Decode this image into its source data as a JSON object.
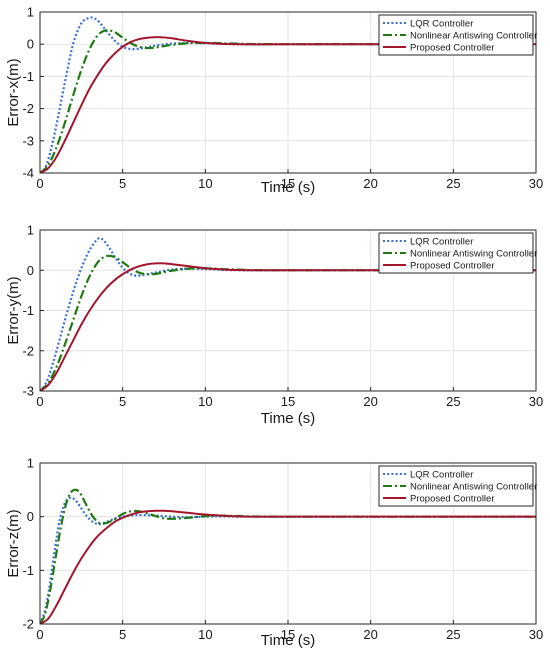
{
  "chart_data": [
    {
      "type": "line",
      "xlabel": "Time (s)",
      "ylabel": "Error-x(m)",
      "xlim": [
        0,
        30
      ],
      "ylim": [
        -4,
        1
      ],
      "xticks": [
        0,
        5,
        10,
        15,
        20,
        25,
        30
      ],
      "yticks": [
        -4,
        -3,
        -2,
        -1,
        0,
        1
      ],
      "grid": true,
      "legend": "top-right",
      "series": [
        {
          "name": "LQR Controller",
          "color": "#3a6fd8",
          "style": "dotted",
          "x": [
            0,
            0.3,
            0.6,
            1.0,
            1.5,
            2.0,
            2.5,
            3.0,
            3.3,
            3.6,
            4.0,
            4.5,
            5.0,
            5.5,
            6.0,
            6.5,
            7.0,
            8.0,
            9.0,
            10.0,
            11.0,
            12.0,
            13.0,
            15.0,
            20.0,
            30.0
          ],
          "y": [
            -4.0,
            -3.85,
            -3.4,
            -2.5,
            -1.2,
            0.0,
            0.65,
            0.82,
            0.8,
            0.68,
            0.42,
            0.12,
            -0.08,
            -0.15,
            -0.14,
            -0.09,
            -0.04,
            0.02,
            0.04,
            0.03,
            0.01,
            0.0,
            -0.005,
            0.0,
            0.0,
            0.0
          ]
        },
        {
          "name": "Nonlinear Antiswing Controller",
          "color": "#1f7a12",
          "style": "dashdot",
          "x": [
            0,
            0.5,
            1.0,
            1.5,
            2.0,
            2.5,
            3.0,
            3.5,
            4.0,
            4.5,
            5.0,
            5.5,
            6.0,
            6.5,
            7.0,
            7.5,
            8.0,
            9.0,
            10.0,
            11.0,
            12.0,
            13.0,
            15.0,
            20.0,
            30.0
          ],
          "y": [
            -4.0,
            -3.75,
            -3.2,
            -2.45,
            -1.6,
            -0.8,
            -0.15,
            0.28,
            0.43,
            0.38,
            0.2,
            0.03,
            -0.08,
            -0.12,
            -0.1,
            -0.06,
            -0.02,
            0.03,
            0.04,
            0.03,
            0.015,
            0.005,
            0.0,
            0.0,
            0.0
          ]
        },
        {
          "name": "Proposed Controller",
          "color": "#a3162c",
          "style": "solid",
          "x": [
            0,
            0.5,
            1.0,
            1.5,
            2.0,
            2.5,
            3.0,
            3.5,
            4.0,
            4.5,
            5.0,
            5.5,
            6.0,
            6.5,
            7.0,
            7.5,
            8.0,
            9.0,
            10.0,
            11.0,
            12.0,
            13.0,
            15.0,
            20.0,
            30.0
          ],
          "y": [
            -4.0,
            -3.85,
            -3.5,
            -3.0,
            -2.45,
            -1.9,
            -1.38,
            -0.95,
            -0.58,
            -0.3,
            -0.08,
            0.07,
            0.16,
            0.2,
            0.22,
            0.21,
            0.18,
            0.1,
            0.04,
            0.01,
            0.0,
            -0.005,
            0.0,
            0.0,
            0.0
          ]
        }
      ]
    },
    {
      "type": "line",
      "xlabel": "Time (s)",
      "ylabel": "Error-y(m)",
      "xlim": [
        0,
        30
      ],
      "ylim": [
        -3,
        1
      ],
      "xticks": [
        0,
        5,
        10,
        15,
        20,
        25,
        30
      ],
      "yticks": [
        -3,
        -2,
        -1,
        0,
        1
      ],
      "grid": true,
      "legend": "top-right",
      "series": [
        {
          "name": "LQR Controller",
          "color": "#3a6fd8",
          "style": "dotted",
          "x": [
            0,
            0.3,
            0.6,
            1.0,
            1.5,
            2.0,
            2.5,
            3.0,
            3.5,
            3.8,
            4.2,
            4.7,
            5.2,
            5.7,
            6.2,
            6.7,
            7.2,
            8.0,
            9.0,
            10.0,
            11.0,
            12.0,
            13.0,
            15.0,
            20.0,
            30.0
          ],
          "y": [
            -3.0,
            -2.85,
            -2.55,
            -2.0,
            -1.25,
            -0.55,
            0.05,
            0.5,
            0.78,
            0.76,
            0.55,
            0.22,
            -0.02,
            -0.13,
            -0.12,
            -0.08,
            -0.04,
            0.02,
            0.04,
            0.03,
            0.01,
            0.0,
            -0.005,
            0.0,
            0.0,
            0.0
          ]
        },
        {
          "name": "Nonlinear Antiswing Controller",
          "color": "#1f7a12",
          "style": "dashdot",
          "x": [
            0,
            0.5,
            1.0,
            1.5,
            2.0,
            2.5,
            3.0,
            3.5,
            4.0,
            4.5,
            5.0,
            5.5,
            6.0,
            6.5,
            7.0,
            7.5,
            8.0,
            9.0,
            10.0,
            11.0,
            12.0,
            13.0,
            15.0,
            20.0,
            30.0
          ],
          "y": [
            -3.0,
            -2.8,
            -2.4,
            -1.85,
            -1.25,
            -0.65,
            -0.15,
            0.2,
            0.35,
            0.33,
            0.2,
            0.05,
            -0.06,
            -0.1,
            -0.09,
            -0.05,
            -0.01,
            0.04,
            0.05,
            0.03,
            0.015,
            0.005,
            0.0,
            0.0,
            0.0
          ]
        },
        {
          "name": "Proposed Controller",
          "color": "#a3162c",
          "style": "solid",
          "x": [
            0,
            0.5,
            1.0,
            1.5,
            2.0,
            2.5,
            3.0,
            3.5,
            4.0,
            4.5,
            5.0,
            5.5,
            6.0,
            6.5,
            7.0,
            7.5,
            8.0,
            9.0,
            10.0,
            11.0,
            12.0,
            13.0,
            15.0,
            20.0,
            30.0
          ],
          "y": [
            -3.0,
            -2.85,
            -2.55,
            -2.15,
            -1.75,
            -1.35,
            -1.0,
            -0.7,
            -0.45,
            -0.25,
            -0.1,
            0.02,
            0.1,
            0.15,
            0.17,
            0.17,
            0.15,
            0.1,
            0.05,
            0.02,
            0.005,
            0.0,
            0.0,
            0.0,
            0.0
          ]
        }
      ]
    },
    {
      "type": "line",
      "xlabel": "Time (s)",
      "ylabel": "Error-z(m)",
      "xlim": [
        0,
        30
      ],
      "ylim": [
        -2,
        1
      ],
      "xticks": [
        0,
        5,
        10,
        15,
        20,
        25,
        30
      ],
      "yticks": [
        -2,
        -1,
        0,
        1
      ],
      "grid": true,
      "legend": "top-right",
      "series": [
        {
          "name": "LQR Controller",
          "color": "#3a6fd8",
          "style": "dotted",
          "x": [
            0,
            0.3,
            0.6,
            0.9,
            1.2,
            1.5,
            1.8,
            2.1,
            2.4,
            2.8,
            3.2,
            3.6,
            4.0,
            4.5,
            5.0,
            5.5,
            6.0,
            7.0,
            8.0,
            9.0,
            10.0,
            11.0,
            12.0,
            13.0,
            15.0,
            30.0
          ],
          "y": [
            -2.0,
            -1.75,
            -1.25,
            -0.6,
            -0.05,
            0.25,
            0.35,
            0.32,
            0.2,
            0.02,
            -0.1,
            -0.14,
            -0.1,
            -0.04,
            0.0,
            0.02,
            0.03,
            0.02,
            0.0,
            -0.01,
            0.0,
            0.005,
            0.0,
            0.0,
            0.0,
            0.0
          ]
        },
        {
          "name": "Nonlinear Antiswing Controller",
          "color": "#1f7a12",
          "style": "dashdot",
          "x": [
            0,
            0.3,
            0.6,
            0.9,
            1.2,
            1.5,
            1.8,
            2.1,
            2.4,
            2.8,
            3.2,
            3.6,
            4.0,
            4.5,
            5.0,
            5.5,
            6.0,
            6.5,
            7.0,
            7.5,
            8.0,
            9.0,
            10.0,
            11.0,
            12.0,
            15.0,
            30.0
          ],
          "y": [
            -2.0,
            -1.82,
            -1.4,
            -0.85,
            -0.3,
            0.15,
            0.42,
            0.5,
            0.45,
            0.22,
            0.0,
            -0.12,
            -0.12,
            -0.05,
            0.05,
            0.1,
            0.1,
            0.06,
            0.01,
            -0.03,
            -0.04,
            -0.02,
            0.01,
            0.02,
            0.01,
            0.0,
            0.0
          ]
        },
        {
          "name": "Proposed Controller",
          "color": "#a3162c",
          "style": "solid",
          "x": [
            0,
            0.5,
            1.0,
            1.5,
            2.0,
            2.5,
            3.0,
            3.5,
            4.0,
            4.5,
            5.0,
            5.5,
            6.0,
            6.5,
            7.0,
            7.5,
            8.0,
            9.0,
            10.0,
            11.0,
            12.0,
            13.0,
            15.0,
            20.0,
            30.0
          ],
          "y": [
            -2.0,
            -1.9,
            -1.65,
            -1.35,
            -1.05,
            -0.78,
            -0.55,
            -0.36,
            -0.22,
            -0.1,
            -0.02,
            0.04,
            0.08,
            0.1,
            0.11,
            0.11,
            0.1,
            0.07,
            0.04,
            0.02,
            0.005,
            0.0,
            0.0,
            0.0,
            0.0
          ]
        }
      ]
    }
  ]
}
